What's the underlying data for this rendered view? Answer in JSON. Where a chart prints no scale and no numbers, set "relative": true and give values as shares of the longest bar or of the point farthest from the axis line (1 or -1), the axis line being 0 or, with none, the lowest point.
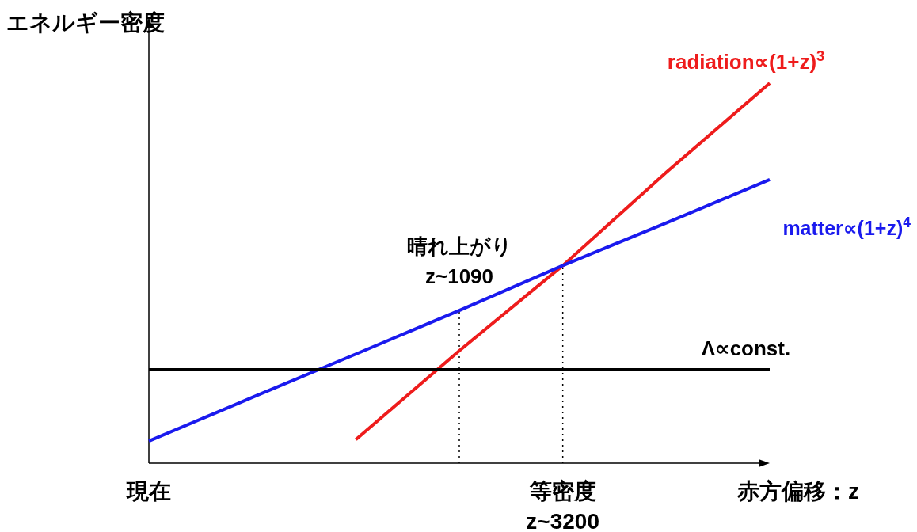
{
  "chart_data": {
    "type": "line",
    "relative": true,
    "ylabel": "エネルギー密度",
    "xlabel": "赤方偏移：z",
    "categories": [
      "現在",
      null,
      null,
      null,
      "等密度 z~3200",
      null,
      null
    ],
    "series": [
      {
        "name": "radiation∝(1+z)$^{3}$",
        "color": "#ee1c1c",
        "values": [
          null,
          null,
          0.062,
          0.296,
          0.52,
          0.765,
          1
        ]
      },
      {
        "name": "matter∝(1+z)$^{4}$",
        "color": "#1a1aee",
        "values": [
          0.058,
          0.173,
          0.287,
          0.402,
          0.52,
          0.632,
          0.746
        ]
      },
      {
        "name": "Λ∝const.",
        "color": "#000000",
        "values": [
          0.246,
          0.246,
          0.246,
          0.246,
          0.246,
          0.246,
          0.246
        ]
      }
    ],
    "ref_lines": [
      {
        "axis": "x",
        "value": "等密度 z~3200",
        "line_style": "dotted"
      }
    ],
    "annotations": [
      "晴れ上がり z~1090"
    ],
    "legend": false,
    "grid": false,
    "marker": "none",
    "line_style": "solid"
  }
}
